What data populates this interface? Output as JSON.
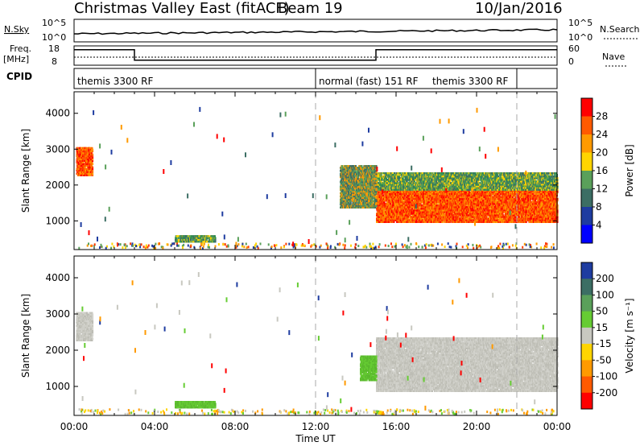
{
  "header": {
    "station": "Christmas Valley East (fitACF)",
    "beam": "Beam 19",
    "date": "10/Jan/2016"
  },
  "panels": {
    "nsky_label": "N.Sky",
    "nsky_ticks": [
      "10^5",
      "10^0"
    ],
    "nsearch_label": "N.Search",
    "nsearch_ticks": [
      "10^5",
      "10^0"
    ],
    "freq_label": "Freq.",
    "freq_unit": "[MHz]",
    "freq_ticks": [
      18,
      8
    ],
    "nave_label": "Nave",
    "nave_ticks": [
      60,
      0
    ],
    "cpid_label": "CPID",
    "cpid_segments": [
      {
        "label": "themis 3300 RF",
        "start_hour": 0.0
      },
      {
        "label": "normal (fast) 151 RF",
        "start_hour": 12.0
      },
      {
        "label": "themis 3300 RF",
        "start_hour": 22.0
      }
    ],
    "freq_series": [
      {
        "start_hour": 0.0,
        "end_hour": 3.0,
        "mhz": 16
      },
      {
        "start_hour": 3.0,
        "end_hour": 15.0,
        "mhz": 10.6
      },
      {
        "start_hour": 15.0,
        "end_hour": 24.0,
        "mhz": 16
      }
    ]
  },
  "chart_data": [
    {
      "type": "heatmap",
      "name": "power",
      "ylabel": "Slant Range [km]",
      "xlabel": "Time UT",
      "x_ticks": [
        "00:00",
        "04:00",
        "08:00",
        "12:00",
        "16:00",
        "20:00",
        "00:00"
      ],
      "xlim_hours": [
        0,
        24
      ],
      "y_ticks": [
        4000,
        3000,
        2000,
        1000
      ],
      "ylim": [
        200,
        4600
      ],
      "colorbar_label": "Power [dB]",
      "colorbar_ticks": [
        28,
        24,
        20,
        16,
        12,
        8,
        4
      ],
      "colorbar_colors": [
        "#ff0000",
        "#ff5a00",
        "#ff9a00",
        "#ffd500",
        "#5aa05a",
        "#3c6e64",
        "#1e3ca0",
        "#0000ff"
      ],
      "vertical_markers_hours": [
        12.0,
        22.0
      ],
      "regions": [
        {
          "t0": 0.1,
          "t1": 0.9,
          "r0": 2300,
          "r1": 3100,
          "level": "strong"
        },
        {
          "t0": 5.0,
          "t1": 7.0,
          "r0": 450,
          "r1": 650,
          "level": "mid"
        },
        {
          "t0": 15.0,
          "t1": 24.0,
          "r0": 1000,
          "r1": 2100,
          "level": "strong"
        },
        {
          "t0": 15.0,
          "t1": 24.0,
          "r0": 1900,
          "r1": 2400,
          "level": "mid"
        },
        {
          "t0": 13.2,
          "t1": 15.0,
          "r0": 1400,
          "r1": 2600,
          "level": "weak"
        }
      ]
    },
    {
      "type": "heatmap",
      "name": "velocity",
      "ylabel": "Slant Range [km]",
      "xlabel": "Time UT",
      "x_ticks": [
        "00:00",
        "04:00",
        "08:00",
        "12:00",
        "16:00",
        "20:00",
        "00:00"
      ],
      "xlim_hours": [
        0,
        24
      ],
      "y_ticks": [
        4000,
        3000,
        2000,
        1000
      ],
      "ylim": [
        200,
        4600
      ],
      "colorbar_label": "Velocity [m s⁻¹]",
      "colorbar_ticks": [
        200,
        100,
        50,
        15,
        -15,
        -50,
        -100,
        -200
      ],
      "colorbar_colors": [
        "#1e3ca0",
        "#3c6e64",
        "#5aa05a",
        "#66cc33",
        "#c8c8c0",
        "#ffd500",
        "#ff9a00",
        "#ff5a00",
        "#ff0000"
      ],
      "vertical_markers_hours": [
        12.0,
        22.0
      ],
      "regions": [
        {
          "t0": 0.1,
          "t1": 0.9,
          "r0": 2300,
          "r1": 3100,
          "level": "gray"
        },
        {
          "t0": 5.0,
          "t1": 7.0,
          "r0": 450,
          "r1": 650,
          "level": "green"
        },
        {
          "t0": 15.0,
          "t1": 24.0,
          "r0": 900,
          "r1": 2400,
          "level": "gray"
        },
        {
          "t0": 14.2,
          "t1": 15.0,
          "r0": 1200,
          "r1": 1900,
          "level": "green"
        }
      ]
    }
  ]
}
